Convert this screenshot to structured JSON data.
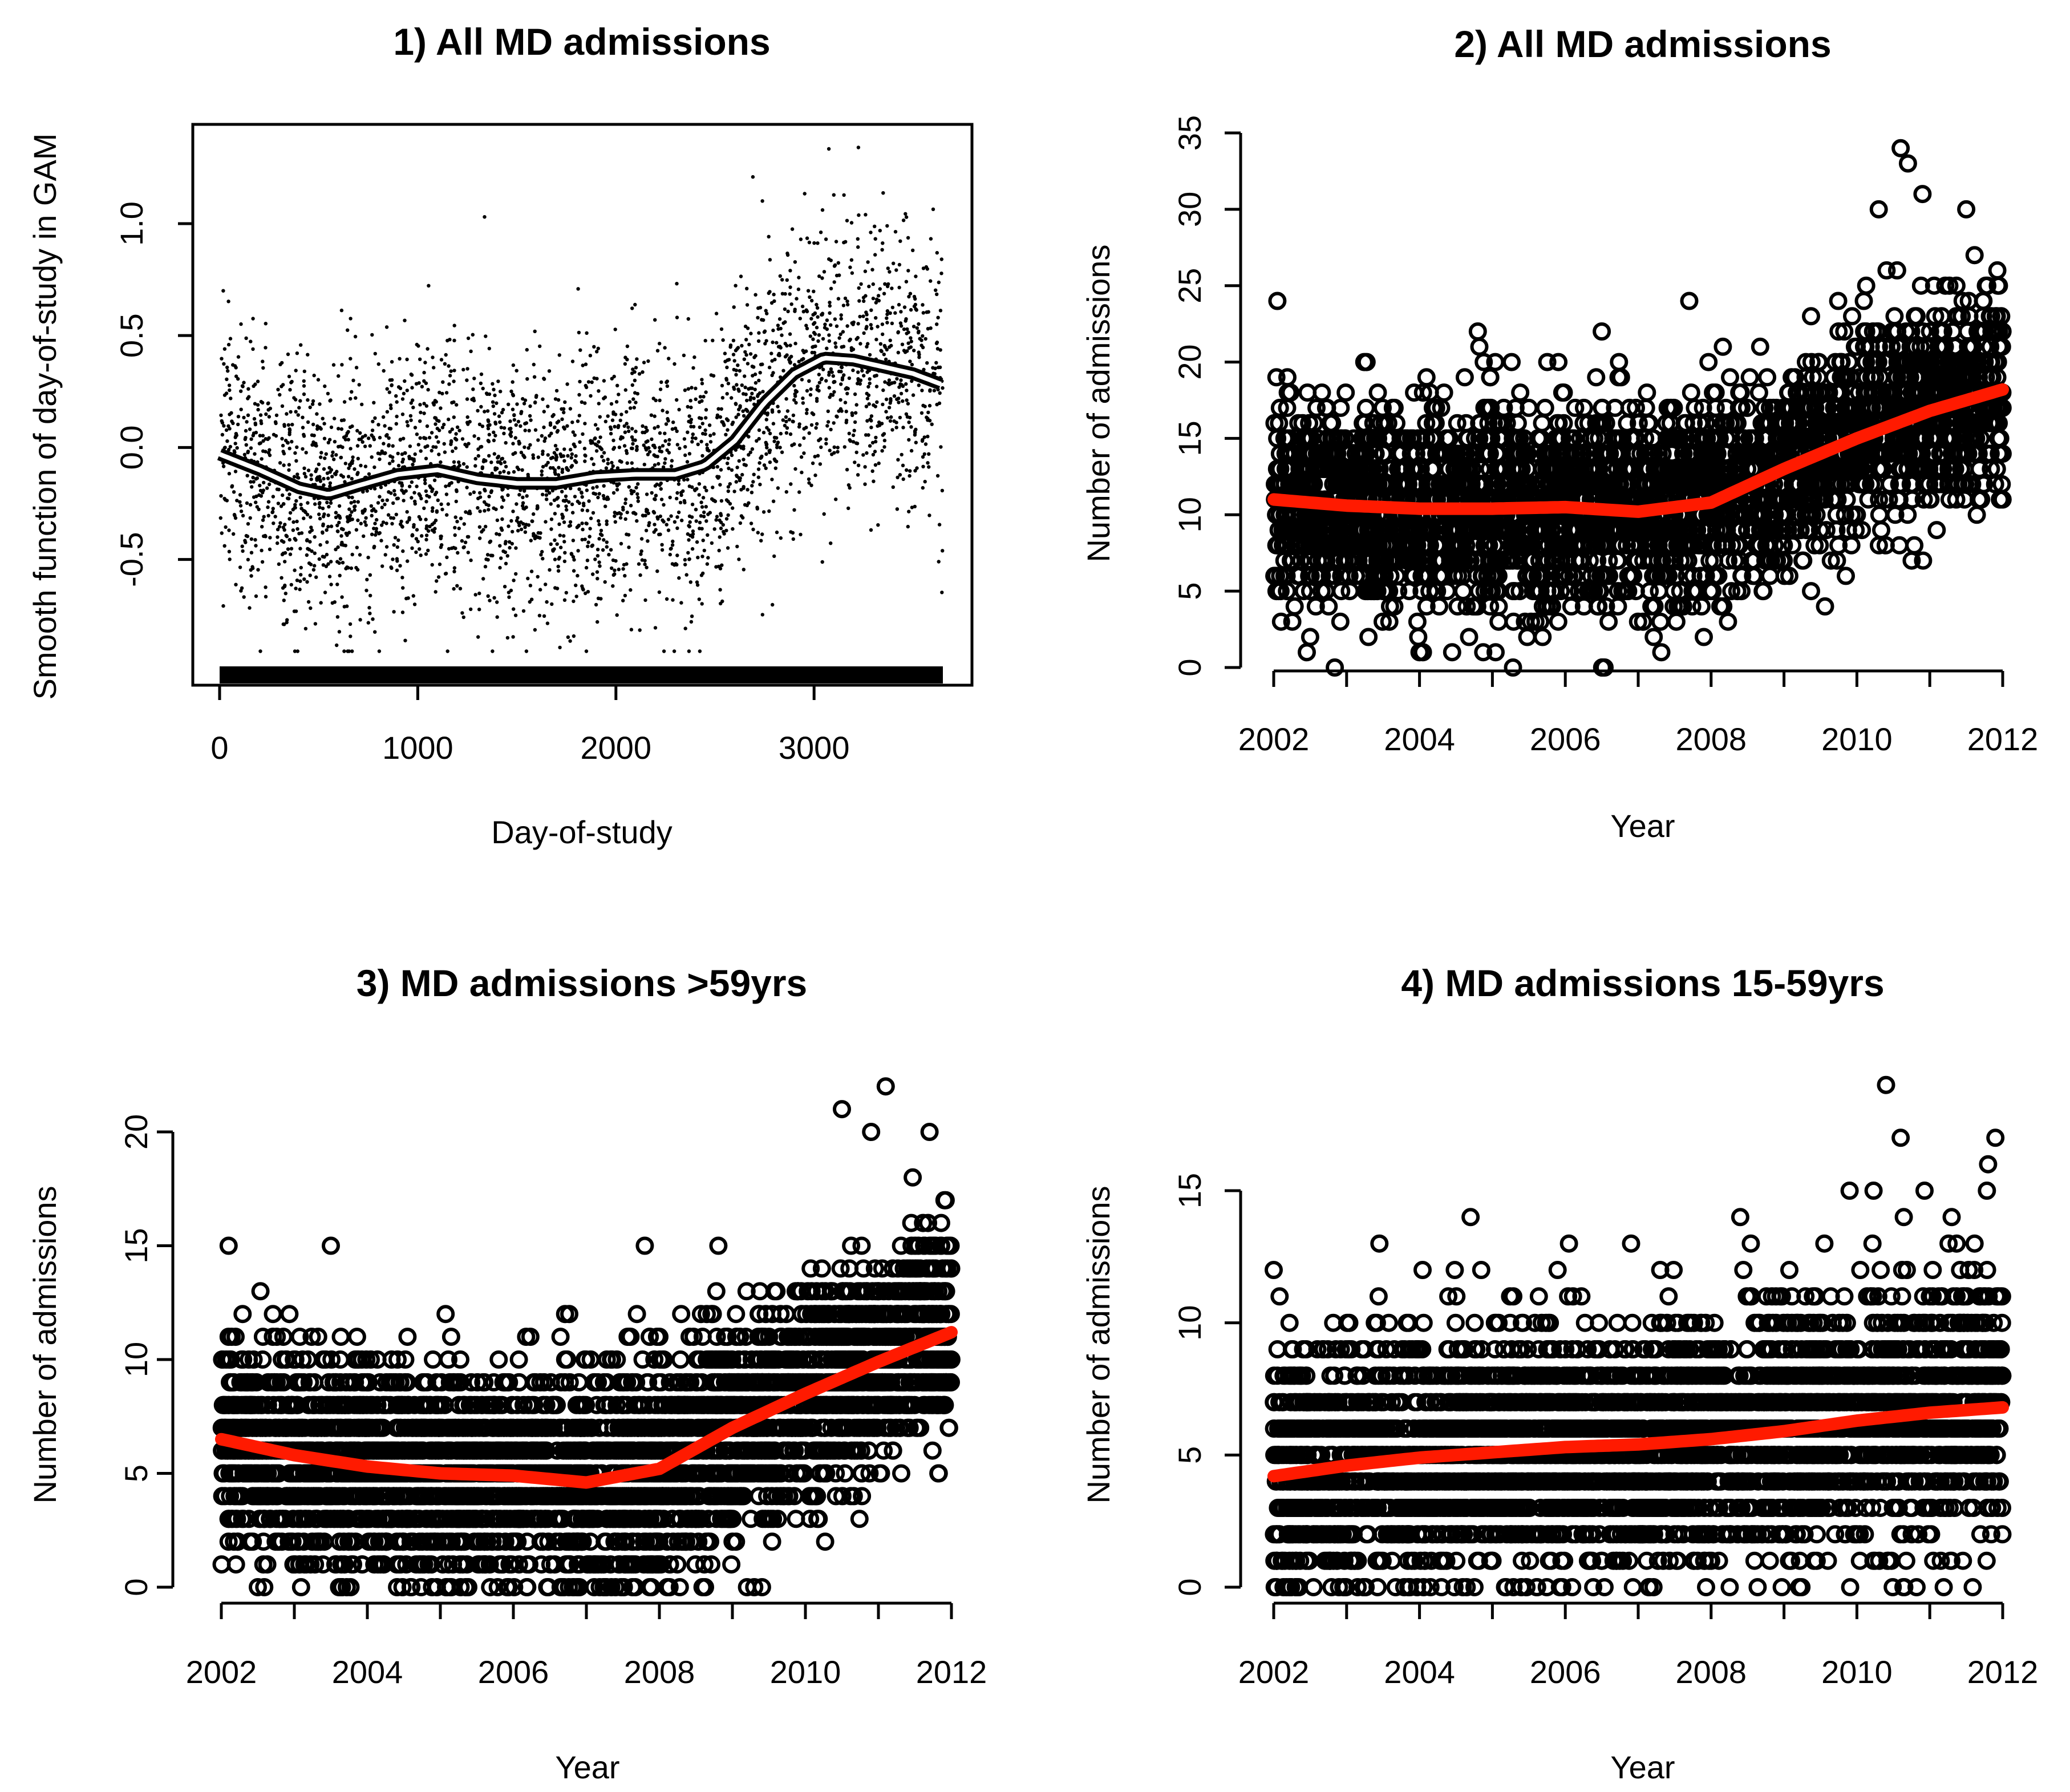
{
  "figure": {
    "panels": [
      {
        "title": "1) All MD admissions"
      },
      {
        "title": "2) All MD admissions"
      },
      {
        "title": "3) MD admissions >59yrs"
      },
      {
        "title": "4) MD admissions 15-59yrs"
      }
    ]
  },
  "chart_data": [
    {
      "type": "scatter",
      "title": "1) All MD admissions",
      "xlabel": "Day-of-study",
      "ylabel": "Smooth function of day-of-study in GAM",
      "xlim": [
        0,
        3650
      ],
      "ylim": [
        -0.97,
        1.4
      ],
      "xticks": [
        0,
        1000,
        2000,
        3000
      ],
      "xtick_labels": [
        "0",
        "1000",
        "2000",
        "3000"
      ],
      "yticks": [
        -0.5,
        0.0,
        0.5,
        1.0
      ],
      "ytick_labels": [
        "-0.5",
        "0.0",
        "0.5",
        "1.0"
      ],
      "frame": true,
      "rug": true,
      "smooth": {
        "x": [
          0,
          200,
          400,
          550,
          700,
          900,
          1100,
          1300,
          1500,
          1700,
          1900,
          2100,
          2300,
          2450,
          2600,
          2750,
          2900,
          3050,
          3200,
          3350,
          3500,
          3650
        ],
        "y": [
          -0.03,
          -0.1,
          -0.18,
          -0.21,
          -0.17,
          -0.12,
          -0.1,
          -0.14,
          -0.16,
          -0.16,
          -0.13,
          -0.12,
          -0.12,
          -0.08,
          0.03,
          0.2,
          0.33,
          0.4,
          0.39,
          0.36,
          0.33,
          0.28
        ]
      },
      "scatter_noise": 0.3
    },
    {
      "type": "scatter",
      "title": "2) All MD admissions",
      "xlabel": "Year",
      "ylabel": "Number of admissions",
      "xlim": [
        2002,
        2012
      ],
      "ylim": [
        0,
        35
      ],
      "xticks": [
        2002,
        2004,
        2006,
        2008,
        2010,
        2012
      ],
      "xtick_labels": [
        "2002",
        "2004",
        "2006",
        "2008",
        "2010",
        "2012"
      ],
      "yticks": [
        0,
        5,
        10,
        15,
        20,
        25,
        30,
        35
      ],
      "ytick_labels": [
        "0",
        "5",
        "10",
        "15",
        "20",
        "25",
        "30",
        "35"
      ],
      "minor_xticks": [
        2003,
        2005,
        2007,
        2009,
        2011
      ],
      "trend": {
        "x": [
          2002,
          2003,
          2004,
          2005,
          2006,
          2007,
          2008,
          2009,
          2010,
          2011,
          2012
        ],
        "y": [
          11.0,
          10.6,
          10.4,
          10.4,
          10.5,
          10.2,
          10.8,
          13.0,
          15.0,
          16.8,
          18.2
        ]
      },
      "spread": 3.3,
      "ymax_clip": 35,
      "outliers": [
        [
          2002.05,
          24
        ],
        [
          2004.0,
          1
        ],
        [
          2004.8,
          22
        ],
        [
          2006.5,
          22
        ],
        [
          2007.7,
          24
        ],
        [
          2010.3,
          30
        ],
        [
          2010.6,
          34
        ],
        [
          2010.7,
          33
        ],
        [
          2010.9,
          31
        ],
        [
          2011.5,
          30
        ],
        [
          2002.1,
          3
        ],
        [
          2003.3,
          2
        ],
        [
          2007.9,
          2
        ],
        [
          2002.5,
          2
        ]
      ]
    },
    {
      "type": "scatter",
      "title": "3) MD admissions >59yrs",
      "xlabel": "Year",
      "ylabel": "Number of admissions",
      "xlim": [
        2002,
        2012
      ],
      "ylim": [
        0,
        20
      ],
      "xticks": [
        2002,
        2004,
        2006,
        2008,
        2010,
        2012
      ],
      "xtick_labels": [
        "2002",
        "2004",
        "2006",
        "2008",
        "2010",
        "2012"
      ],
      "yticks": [
        0,
        5,
        10,
        15,
        20
      ],
      "ytick_labels": [
        "0",
        "5",
        "10",
        "15",
        "20"
      ],
      "minor_xticks": [
        2003,
        2005,
        2007,
        2009,
        2011
      ],
      "trend": {
        "x": [
          2002,
          2003,
          2004,
          2005,
          2006,
          2007,
          2008,
          2009,
          2010,
          2011,
          2012
        ],
        "y": [
          6.5,
          5.8,
          5.3,
          5.0,
          4.9,
          4.6,
          5.2,
          7.0,
          8.5,
          9.9,
          11.2
        ]
      },
      "spread": 2.4,
      "ymax_clip": 22,
      "outliers": [
        [
          2002.1,
          15
        ],
        [
          2003.5,
          15
        ],
        [
          2007.8,
          15
        ],
        [
          2010.5,
          21
        ],
        [
          2011.1,
          22
        ],
        [
          2010.9,
          20
        ],
        [
          2011.7,
          20
        ],
        [
          2002.5,
          0
        ],
        [
          2009.2,
          0
        ]
      ]
    },
    {
      "type": "scatter",
      "title": "4) MD admissions 15-59yrs",
      "xlabel": "Year",
      "ylabel": "Number of admissions",
      "xlim": [
        2002,
        2012
      ],
      "ylim": [
        0,
        15
      ],
      "xticks": [
        2002,
        2004,
        2006,
        2008,
        2010,
        2012
      ],
      "xtick_labels": [
        "2002",
        "2004",
        "2006",
        "2008",
        "2010",
        "2012"
      ],
      "yticks": [
        0,
        5,
        10,
        15
      ],
      "ytick_labels": [
        "0",
        "5",
        "10",
        "15"
      ],
      "minor_xticks": [
        2003,
        2005,
        2007,
        2009,
        2011
      ],
      "trend": {
        "x": [
          2002,
          2003,
          2004,
          2005,
          2006,
          2007,
          2008,
          2009,
          2010,
          2011,
          2012
        ],
        "y": [
          4.2,
          4.6,
          4.9,
          5.1,
          5.3,
          5.4,
          5.6,
          5.9,
          6.3,
          6.6,
          6.8
        ]
      },
      "spread": 2.4,
      "ymax_clip": 19,
      "outliers": [
        [
          2002.0,
          12
        ],
        [
          2010.4,
          19
        ],
        [
          2010.6,
          17
        ],
        [
          2011.8,
          16
        ],
        [
          2011.9,
          17
        ],
        [
          2004.7,
          14
        ],
        [
          2008.4,
          14
        ],
        [
          2009.9,
          15
        ],
        [
          2011.3,
          14
        ]
      ]
    }
  ]
}
